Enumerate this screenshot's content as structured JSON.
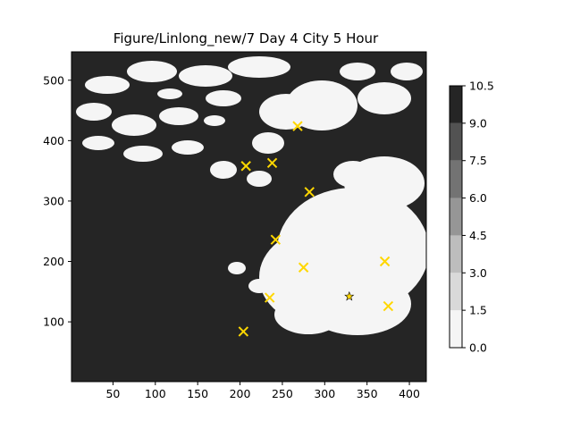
{
  "chart_data": {
    "type": "heatmap",
    "title": "Figure/Linlong_new/7 Day 4 City 5 Hour",
    "xlabel": "",
    "ylabel": "",
    "xlim": [
      1,
      420
    ],
    "ylim": [
      1,
      547
    ],
    "xticks": [
      50,
      100,
      150,
      200,
      250,
      300,
      350,
      400
    ],
    "yticks": [
      100,
      200,
      300,
      400,
      500
    ],
    "colorbar": {
      "levels": [
        0.0,
        1.5,
        3.0,
        4.5,
        6.0,
        7.5,
        9.0,
        10.5
      ],
      "tick_labels": [
        "0.0",
        "1.5",
        "3.0",
        "4.5",
        "6.0",
        "7.5",
        "9.0",
        "10.5"
      ],
      "colors": [
        "#f5f5f5",
        "#d9d9d9",
        "#bdbdbd",
        "#969696",
        "#737373",
        "#525252",
        "#252525"
      ]
    },
    "field_colors": {
      "low": "#f5f5f5",
      "high": "#252525"
    },
    "markers": {
      "color": "#ffd700",
      "x_points": [
        {
          "x": 268,
          "y": 424
        },
        {
          "x": 207,
          "y": 358
        },
        {
          "x": 238,
          "y": 363
        },
        {
          "x": 282,
          "y": 315
        },
        {
          "x": 242,
          "y": 236
        },
        {
          "x": 275,
          "y": 190
        },
        {
          "x": 371,
          "y": 200
        },
        {
          "x": 235,
          "y": 140
        },
        {
          "x": 375,
          "y": 126
        },
        {
          "x": 204,
          "y": 84
        }
      ],
      "star_points": [
        {
          "x": 329,
          "y": 142
        }
      ]
    }
  }
}
